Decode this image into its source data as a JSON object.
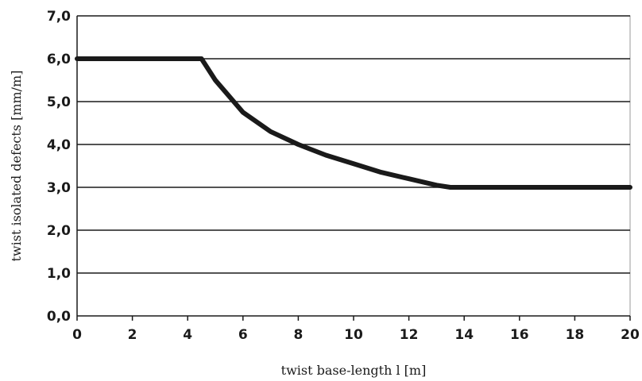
{
  "chart_data": {
    "type": "line",
    "title": "",
    "xlabel": "twist base-length l [m]",
    "ylabel": "twist isolated defects [mm/m]",
    "xlim": [
      0,
      20
    ],
    "ylim": [
      0,
      7
    ],
    "x_ticks": [
      "0",
      "2",
      "4",
      "6",
      "8",
      "10",
      "12",
      "14",
      "16",
      "18",
      "20"
    ],
    "y_ticks": [
      "0,0",
      "1,0",
      "2,0",
      "3,0",
      "4,0",
      "5,0",
      "6,0",
      "7,0"
    ],
    "grid": "horizontal",
    "series": [
      {
        "values_x": [
          0,
          4.5,
          5,
          6,
          7,
          8,
          9,
          10,
          11,
          12,
          13,
          13.5,
          20
        ],
        "values_y": [
          6.0,
          6.0,
          5.5,
          4.75,
          4.3,
          4.0,
          3.75,
          3.55,
          3.35,
          3.2,
          3.05,
          3.0,
          3.0
        ],
        "color": "#1a1a1a"
      }
    ]
  }
}
